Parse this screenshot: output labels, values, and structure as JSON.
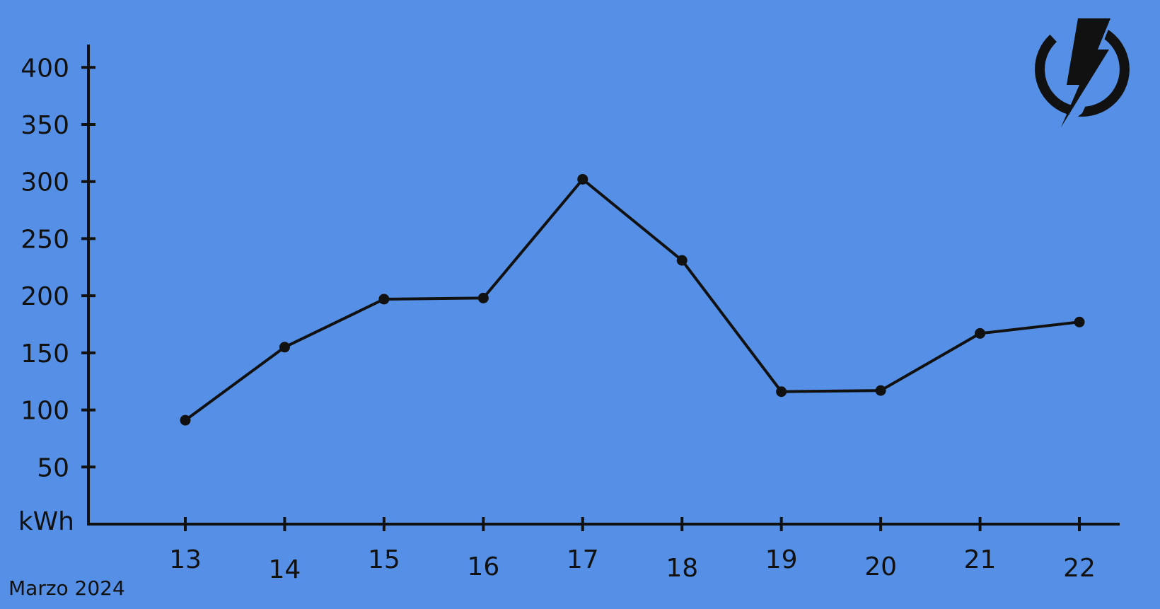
{
  "colors": {
    "background": "#5590e6",
    "ink": "#111111"
  },
  "icon": "lightning-power-icon",
  "caption": "Marzo 2024",
  "chart_data": {
    "type": "line",
    "title": "",
    "xlabel": "",
    "ylabel": "kWh",
    "x": [
      "13",
      "14",
      "15",
      "16",
      "17",
      "18",
      "19",
      "20",
      "21",
      "22"
    ],
    "series": [
      {
        "values": [
          91,
          155,
          197,
          198,
          302,
          231,
          116,
          117,
          167,
          177
        ]
      }
    ],
    "ylim": [
      0,
      420
    ],
    "yticks": [
      50,
      100,
      150,
      200,
      250,
      300,
      350,
      400
    ],
    "grid": false,
    "markers": true
  }
}
